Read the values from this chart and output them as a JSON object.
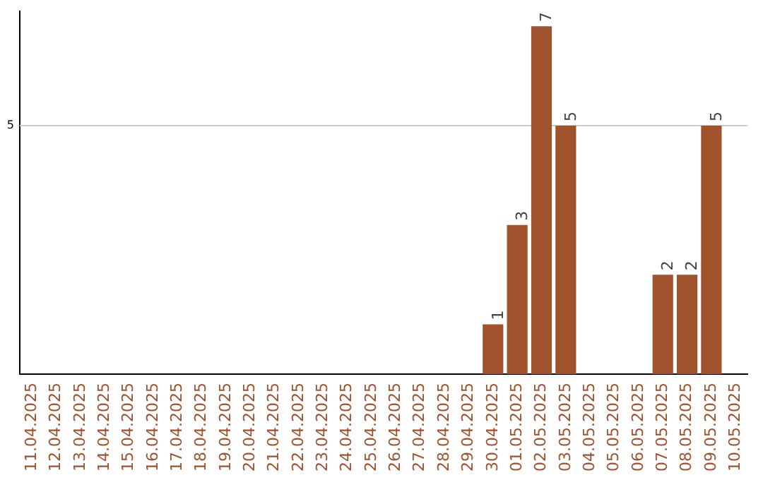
{
  "chart_data": {
    "type": "bar",
    "categories": [
      "11.04.2025",
      "12.04.2025",
      "13.04.2025",
      "14.04.2025",
      "15.04.2025",
      "16.04.2025",
      "17.04.2025",
      "18.04.2025",
      "19.04.2025",
      "20.04.2025",
      "21.04.2025",
      "22.04.2025",
      "23.04.2025",
      "24.04.2025",
      "25.04.2025",
      "26.04.2025",
      "27.04.2025",
      "28.04.2025",
      "29.04.2025",
      "30.04.2025",
      "01.05.2025",
      "02.05.2025",
      "03.05.2025",
      "04.05.2025",
      "05.05.2025",
      "06.05.2025",
      "07.05.2025",
      "08.05.2025",
      "09.05.2025",
      "10.05.2025"
    ],
    "values": [
      null,
      null,
      null,
      null,
      null,
      null,
      null,
      null,
      null,
      null,
      null,
      null,
      null,
      null,
      null,
      null,
      null,
      null,
      null,
      1,
      3,
      7,
      5,
      null,
      null,
      null,
      2,
      2,
      5,
      null
    ],
    "data_labels": true,
    "color": "#a0522d",
    "ylim": [
      0,
      7.3
    ],
    "ref_lines": [
      {
        "axis": "y",
        "value": 5,
        "label": "5",
        "color": "#cccccc"
      }
    ],
    "legend": false
  }
}
